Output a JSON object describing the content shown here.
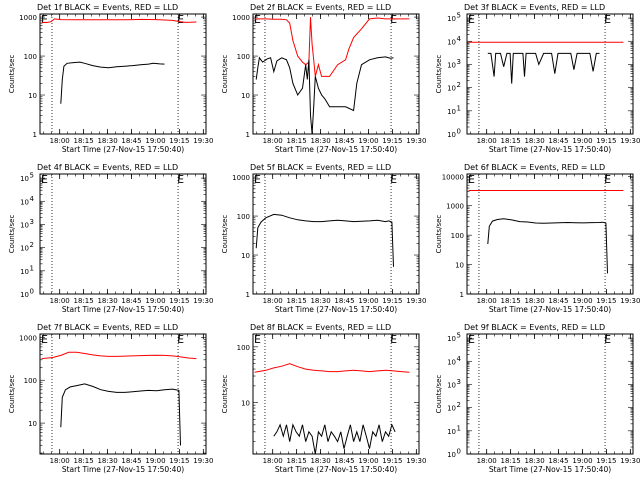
{
  "colors": {
    "events": "#000000",
    "lld": "#ff0000",
    "frame": "#000000",
    "background": "#ffffff"
  },
  "panels": [
    {
      "title": "Det 1f BLACK = Events, RED = LLD",
      "xlabel": "Start Time (27-Nov-15 17:50:40)",
      "ylabel": "Counts/sec",
      "x_tick_labels": [
        "18:00",
        "18:15",
        "18:30",
        "18:45",
        "19:00",
        "19:15",
        "19:30"
      ],
      "y_tick_labels": [
        "1",
        "10",
        "100",
        "1000"
      ],
      "chart_data": {
        "type": "line",
        "y_scale": "log",
        "ylim": [
          1,
          1200
        ],
        "xlim_minutes_after_start": [
          -3,
          101
        ],
        "event_marker_label": "E",
        "event_markers_minutes": [
          4.5,
          83.5
        ],
        "series": [
          {
            "color": "#ff0000",
            "x": [
              -2,
              2,
              4,
              6,
              10,
              20,
              30,
              40,
              50,
              55,
              60,
              70,
              80,
              85,
              88,
              91,
              95
            ],
            "y": [
              720,
              740,
              760,
              900,
              860,
              850,
              850,
              850,
              850,
              860,
              870,
              860,
              820,
              760,
              730,
              740,
              750
            ]
          },
          {
            "color": "#000000",
            "x": [
              10,
              11,
              12,
              14,
              18,
              22,
              25,
              30,
              35,
              40,
              45,
              50,
              55,
              60,
              65,
              68,
              72,
              75
            ],
            "y": [
              6,
              25,
              55,
              65,
              68,
              70,
              65,
              57,
              52,
              50,
              53,
              55,
              57,
              60,
              62,
              65,
              63,
              62
            ]
          }
        ]
      }
    },
    {
      "title": "Det 2f BLACK = Events, RED = LLD",
      "xlabel": "Start Time (27-Nov-15 17:50:40)",
      "ylabel": "Counts/sec",
      "x_tick_labels": [
        "18:00",
        "18:15",
        "18:30",
        "18:45",
        "19:00",
        "19:15",
        "19:30"
      ],
      "y_tick_labels": [
        "1",
        "10",
        "100",
        "1000"
      ],
      "chart_data": {
        "type": "line",
        "y_scale": "log",
        "ylim": [
          1,
          1200
        ],
        "xlim_minutes_after_start": [
          -3,
          101
        ],
        "event_marker_label": "E",
        "event_markers_minutes": [
          4.5,
          83.5
        ],
        "series": [
          {
            "color": "#ff0000",
            "x": [
              -2,
              5,
              10,
              15,
              18,
              20,
              22,
              25,
              28,
              30,
              32,
              33,
              34,
              35,
              36,
              38,
              40,
              45,
              50,
              55,
              57,
              60,
              65,
              70,
              75,
              80,
              85,
              90,
              95
            ],
            "y": [
              900,
              900,
              880,
              880,
              850,
              700,
              250,
              100,
              70,
              60,
              70,
              1000,
              200,
              80,
              30,
              60,
              30,
              30,
              60,
              80,
              150,
              300,
              500,
              900,
              950,
              900,
              900,
              900,
              900
            ]
          },
          {
            "color": "#000000",
            "x": [
              -1,
              0,
              1,
              3,
              6,
              8,
              10,
              12,
              15,
              18,
              20,
              22,
              25,
              28,
              30,
              31,
              32,
              33,
              34,
              35,
              36,
              38,
              40,
              42,
              45,
              50,
              55,
              60,
              62,
              65,
              70,
              75,
              80,
              83,
              85
            ],
            "y": [
              25,
              50,
              90,
              70,
              85,
              90,
              40,
              75,
              90,
              80,
              50,
              20,
              10,
              15,
              60,
              25,
              80,
              3,
              1,
              5,
              30,
              15,
              10,
              8,
              5,
              5,
              5,
              4,
              20,
              60,
              80,
              90,
              95,
              88,
              90
            ]
          }
        ]
      }
    },
    {
      "title": "Det 3f BLACK = Events, RED = LLD",
      "xlabel": "Start Time (27-Nov-15 17:50:40)",
      "ylabel": "Counts/sec",
      "x_tick_labels": [
        "18:00",
        "18:15",
        "18:30",
        "18:45",
        "19:00",
        "19:15",
        "19:30"
      ],
      "y_tick_labels": [
        "10^0",
        "10^1",
        "10^2",
        "10^3",
        "10^4",
        "10^5"
      ],
      "chart_data": {
        "type": "line",
        "y_scale": "log",
        "ylim": [
          1,
          150000
        ],
        "xlim_minutes_after_start": [
          -3,
          101
        ],
        "event_marker_label": "E",
        "event_markers_minutes": [
          4.5,
          83.5
        ],
        "series": [
          {
            "color": "#ff0000",
            "x": [
              -2,
              10,
              20,
              30,
              40,
              50,
              60,
              70,
              80,
              90,
              95
            ],
            "y": [
              9000,
              9000,
              9000,
              9000,
              9000,
              9000,
              9000,
              9000,
              9000,
              9000,
              9000
            ]
          },
          {
            "color": "#000000",
            "x": [
              10,
              12,
              14,
              15,
              16,
              18,
              20,
              22,
              24,
              25,
              26,
              28,
              30,
              32,
              33,
              34,
              36,
              38,
              40,
              42,
              45,
              48,
              50,
              52,
              54,
              55,
              56,
              58,
              60,
              62,
              64,
              66,
              68,
              70,
              72,
              74,
              76,
              78,
              80
            ],
            "y": [
              3000,
              3000,
              300,
              3000,
              3000,
              3000,
              800,
              3000,
              3000,
              150,
              3000,
              3000,
              3000,
              3000,
              300,
              3000,
              3000,
              3000,
              3000,
              1000,
              3000,
              3000,
              3000,
              400,
              3000,
              3000,
              3000,
              3000,
              3000,
              3000,
              600,
              3000,
              3000,
              3000,
              3000,
              3000,
              500,
              3000,
              3000
            ]
          }
        ]
      }
    },
    {
      "title": "Det 4f BLACK = Events, RED = LLD",
      "xlabel": "Start Time (27-Nov-15 17:50:40)",
      "ylabel": "Counts/sec",
      "x_tick_labels": [
        "18:00",
        "18:15",
        "18:30",
        "18:45",
        "19:00",
        "19:15",
        "19:30"
      ],
      "y_tick_labels": [
        "10^0",
        "10^1",
        "10^2",
        "10^3",
        "10^4",
        "10^5"
      ],
      "chart_data": {
        "type": "line",
        "y_scale": "log",
        "ylim": [
          1,
          150000
        ],
        "xlim_minutes_after_start": [
          -3,
          101
        ],
        "event_marker_label": "E",
        "event_markers_minutes": [
          4.5,
          83.5
        ],
        "series": []
      }
    },
    {
      "title": "Det 5f BLACK = Events, RED = LLD",
      "xlabel": "Start Time (27-Nov-15 17:50:40)",
      "ylabel": "Counts/sec",
      "x_tick_labels": [
        "18:00",
        "18:15",
        "18:30",
        "18:45",
        "19:00",
        "19:15",
        "19:30"
      ],
      "y_tick_labels": [
        "1",
        "10",
        "100",
        "1000"
      ],
      "chart_data": {
        "type": "line",
        "y_scale": "log",
        "ylim": [
          1,
          1200
        ],
        "xlim_minutes_after_start": [
          -3,
          101
        ],
        "event_marker_label": "E",
        "event_markers_minutes": [
          4.5,
          83.5
        ],
        "series": [
          {
            "color": "#000000",
            "x": [
              -1,
              0,
              2,
              5,
              10,
              15,
              20,
              25,
              30,
              35,
              40,
              45,
              50,
              55,
              60,
              65,
              70,
              75,
              80,
              82,
              84,
              85
            ],
            "y": [
              15,
              50,
              70,
              90,
              110,
              105,
              90,
              80,
              75,
              72,
              72,
              75,
              78,
              75,
              72,
              74,
              75,
              78,
              72,
              75,
              70,
              5
            ]
          }
        ]
      }
    },
    {
      "title": "Det 6f BLACK = Events, RED = LLD",
      "xlabel": "Start Time (27-Nov-15 17:50:40)",
      "ylabel": "Counts/sec",
      "x_tick_labels": [
        "18:00",
        "18:15",
        "18:30",
        "18:45",
        "19:00",
        "19:15",
        "19:30"
      ],
      "y_tick_labels": [
        "1",
        "10",
        "100",
        "1000",
        "10000"
      ],
      "chart_data": {
        "type": "line",
        "y_scale": "log",
        "ylim": [
          1,
          12000
        ],
        "xlim_minutes_after_start": [
          -3,
          101
        ],
        "event_marker_label": "E",
        "event_markers_minutes": [
          4.5,
          83.5
        ],
        "series": [
          {
            "color": "#ff0000",
            "x": [
              -2,
              10,
              20,
              30,
              40,
              50,
              60,
              70,
              80,
              90,
              95
            ],
            "y": [
              3300,
              3300,
              3300,
              3300,
              3300,
              3300,
              3300,
              3300,
              3300,
              3300,
              3300
            ]
          },
          {
            "color": "#000000",
            "x": [
              10,
              11,
              13,
              16,
              20,
              25,
              30,
              35,
              40,
              45,
              50,
              55,
              60,
              65,
              70,
              75,
              80,
              82,
              84,
              85
            ],
            "y": [
              50,
              200,
              300,
              340,
              360,
              330,
              290,
              280,
              260,
              255,
              260,
              265,
              270,
              265,
              262,
              268,
              270,
              275,
              260,
              5
            ]
          }
        ]
      }
    },
    {
      "title": "Det 7f BLACK = Events, RED = LLD",
      "xlabel": "Start Time (27-Nov-15 17:50:40)",
      "ylabel": "Counts/sec",
      "x_tick_labels": [
        "18:00",
        "18:15",
        "18:30",
        "18:45",
        "19:00",
        "19:15",
        "19:30"
      ],
      "y_tick_labels": [
        "10",
        "100",
        "1000"
      ],
      "chart_data": {
        "type": "line",
        "y_scale": "log",
        "ylim": [
          1.9,
          1200
        ],
        "xlim_minutes_after_start": [
          -3,
          101
        ],
        "event_marker_label": "E",
        "event_markers_minutes": [
          4.5,
          83.5
        ],
        "series": [
          {
            "color": "#ff0000",
            "x": [
              -2,
              5,
              10,
              15,
              20,
              25,
              30,
              35,
              40,
              45,
              50,
              55,
              60,
              65,
              70,
              75,
              80,
              85,
              90,
              95
            ],
            "y": [
              320,
              340,
              380,
              450,
              450,
              420,
              390,
              370,
              360,
              360,
              365,
              370,
              375,
              380,
              385,
              380,
              370,
              350,
              330,
              320
            ]
          },
          {
            "color": "#000000",
            "x": [
              10,
              11,
              13,
              16,
              20,
              25,
              30,
              35,
              40,
              45,
              50,
              55,
              60,
              65,
              70,
              75,
              80,
              82,
              84,
              85
            ],
            "y": [
              8,
              40,
              60,
              70,
              75,
              82,
              72,
              60,
              55,
              52,
              52,
              54,
              56,
              58,
              57,
              60,
              62,
              60,
              58,
              3
            ]
          }
        ]
      }
    },
    {
      "title": "Det 8f BLACK = Events, RED = LLD",
      "xlabel": "Start Time (27-Nov-15 17:50:40)",
      "ylabel": "Counts/sec",
      "x_tick_labels": [
        "18:00",
        "18:15",
        "18:30",
        "18:45",
        "19:00",
        "19:15",
        "19:30"
      ],
      "y_tick_labels": [
        "10",
        "100"
      ],
      "chart_data": {
        "type": "line",
        "y_scale": "log",
        "ylim": [
          1.2,
          170
        ],
        "xlim_minutes_after_start": [
          -3,
          101
        ],
        "event_marker_label": "E",
        "event_markers_minutes": [
          4.5,
          83.5
        ],
        "series": [
          {
            "color": "#ff0000",
            "x": [
              -2,
              5,
              10,
              15,
              20,
              25,
              30,
              35,
              40,
              45,
              50,
              55,
              60,
              65,
              70,
              75,
              80,
              85,
              90,
              95
            ],
            "y": [
              35,
              38,
              42,
              45,
              50,
              44,
              40,
              38,
              37,
              36,
              36,
              37,
              38,
              37,
              36,
              37,
              38,
              37,
              36,
              35
            ]
          },
          {
            "color": "#000000",
            "x": [
              10,
              12,
              14,
              16,
              18,
              20,
              22,
              24,
              26,
              28,
              30,
              32,
              34,
              36,
              38,
              40,
              42,
              44,
              46,
              48,
              50,
              52,
              54,
              56,
              58,
              60,
              62,
              64,
              66,
              68,
              70,
              72,
              74,
              76,
              78,
              80,
              82,
              84,
              86
            ],
            "y": [
              2.5,
              3,
              4,
              2.5,
              4,
              2,
              4,
              3,
              2.5,
              4,
              2,
              3,
              2.5,
              1.2,
              3,
              2.5,
              4,
              2,
              3,
              2.5,
              2,
              3,
              1.5,
              2.5,
              4,
              2,
              3,
              2,
              4,
              2.5,
              1.5,
              3,
              2.5,
              4,
              2,
              3,
              2.5,
              4,
              3
            ]
          }
        ]
      }
    },
    {
      "title": "Det 9f BLACK = Events, RED = LLD",
      "xlabel": "Start Time (27-Nov-15 17:50:40)",
      "ylabel": "Counts/sec",
      "x_tick_labels": [
        "18:00",
        "18:15",
        "18:30",
        "18:45",
        "19:00",
        "19:15",
        "19:30"
      ],
      "y_tick_labels": [
        "10^0",
        "10^1",
        "10^2",
        "10^3",
        "10^4",
        "10^5"
      ],
      "chart_data": {
        "type": "line",
        "y_scale": "log",
        "ylim": [
          1,
          150000
        ],
        "xlim_minutes_after_start": [
          -3,
          101
        ],
        "event_marker_label": "E",
        "event_markers_minutes": [
          4.5,
          83.5
        ],
        "series": []
      }
    }
  ]
}
